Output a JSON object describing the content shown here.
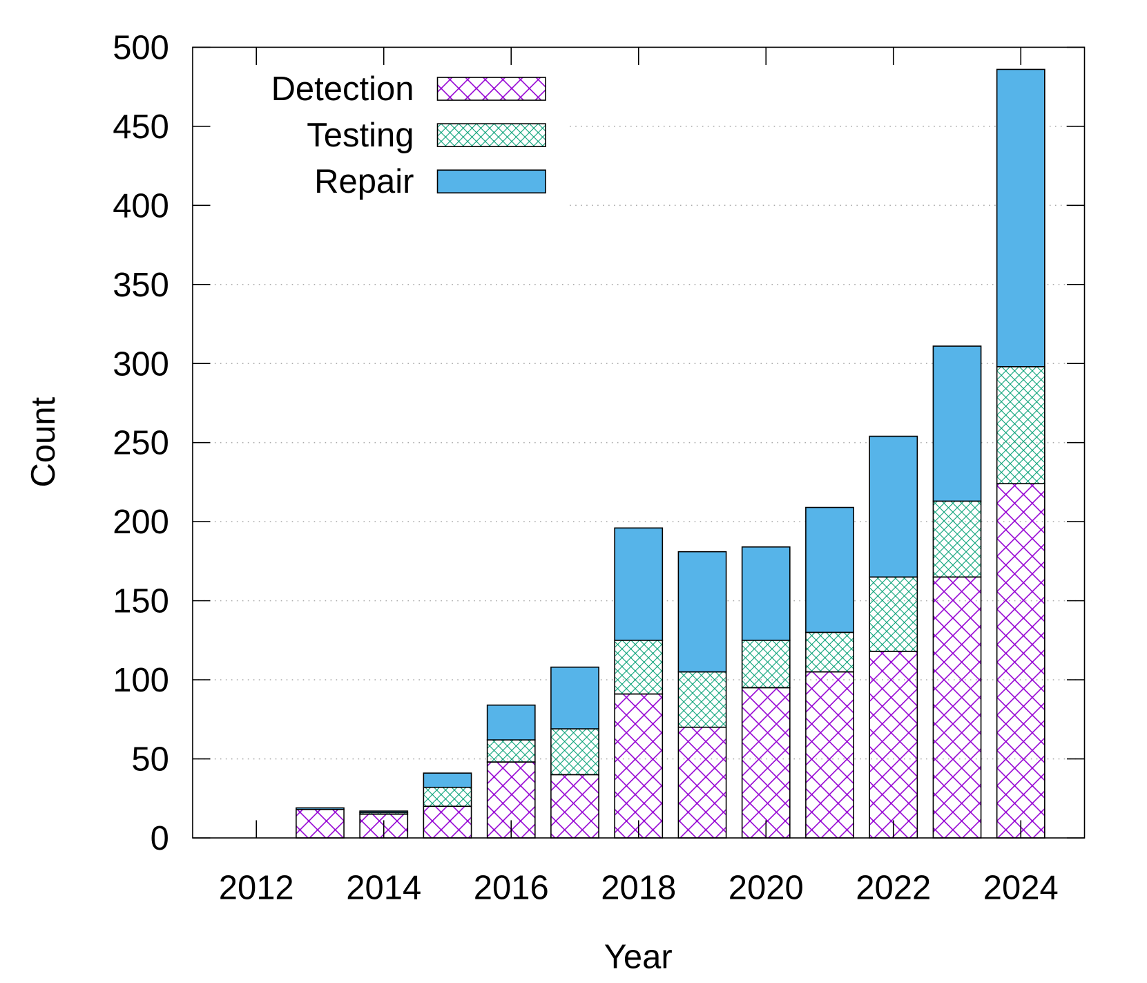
{
  "chart_data": {
    "type": "bar",
    "stacked": true,
    "xlabel": "Year",
    "ylabel": "Count",
    "xlim": [
      2011,
      2025
    ],
    "ylim": [
      0,
      500
    ],
    "xticks": [
      2012,
      2014,
      2016,
      2018,
      2020,
      2022,
      2024
    ],
    "yticks": [
      0,
      50,
      100,
      150,
      200,
      250,
      300,
      350,
      400,
      450,
      500
    ],
    "grid": "horizontal dotted",
    "legend_position": "top-left",
    "categories": [
      2013,
      2014,
      2015,
      2016,
      2017,
      2018,
      2019,
      2020,
      2021,
      2022,
      2023,
      2024
    ],
    "series": [
      {
        "name": "Detection",
        "color": "#9400d3",
        "pattern": "crosshatch",
        "values": [
          18,
          15,
          20,
          48,
          40,
          91,
          70,
          95,
          105,
          118,
          165,
          224
        ]
      },
      {
        "name": "Testing",
        "color": "#009e73",
        "pattern": "fine-crosshatch",
        "values": [
          0,
          1,
          12,
          14,
          29,
          34,
          35,
          30,
          25,
          47,
          48,
          74
        ]
      },
      {
        "name": "Repair",
        "color": "#56b4e9",
        "pattern": "solid",
        "values": [
          1,
          1,
          9,
          22,
          39,
          71,
          76,
          59,
          79,
          89,
          98,
          188
        ]
      }
    ]
  }
}
